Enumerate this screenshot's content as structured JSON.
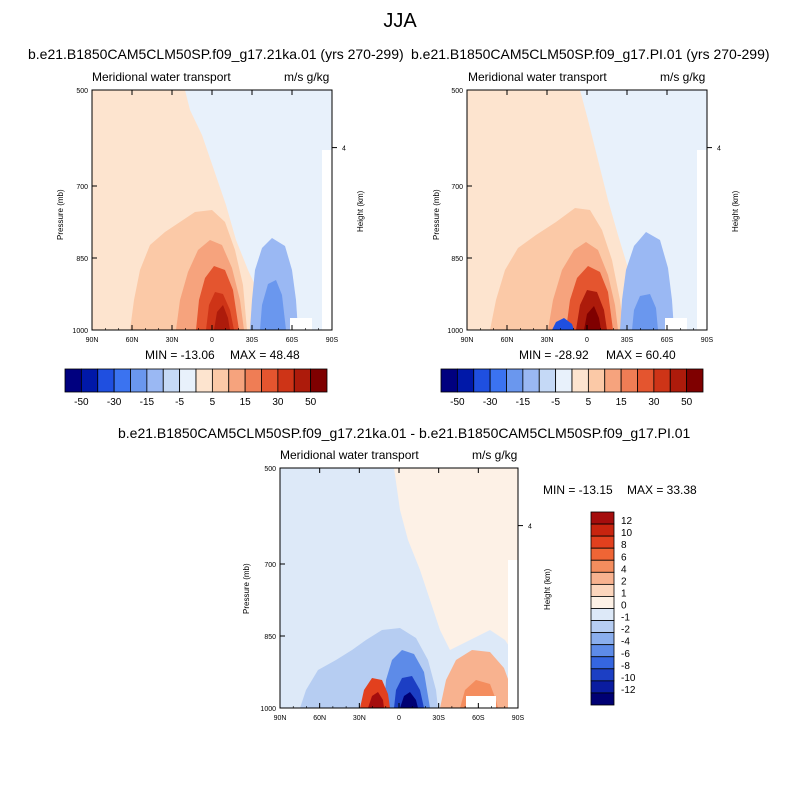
{
  "page_title": "JJA",
  "colors": {
    "axis": "#000000",
    "missing": "#ffffff"
  },
  "chart_data": [
    {
      "id": "ka",
      "type": "heatmap",
      "title": "b.e21.B1850CAM5CLM50SP.f09_g17.21ka.01 (yrs 270-299)",
      "left_label": "Meridional water transport",
      "right_label": "m/s g/kg",
      "ylabel": "Pressure (mb)",
      "ylabel_right": "Height (km)",
      "x_ticks": [
        "90N",
        "60N",
        "30N",
        "0",
        "30S",
        "60S",
        "90S"
      ],
      "y_ticks": [
        "500",
        "700",
        "850",
        "1000"
      ],
      "y_right_ticks": [
        "4"
      ],
      "min_label": "MIN = -13.06",
      "max_label": "MAX =  48.48",
      "levels": [
        -50,
        -40,
        -30,
        -20,
        -15,
        -10,
        -5,
        -1,
        1,
        5,
        10,
        15,
        20,
        30,
        40,
        50
      ],
      "colorbar_labels": [
        "-50",
        "-30",
        "-15",
        "-5",
        "5",
        "15",
        "30",
        "50"
      ],
      "colorbar_colors": [
        "#00007f",
        "#0018a8",
        "#1f4fe0",
        "#3b73f0",
        "#6a97ee",
        "#9ab8f3",
        "#c5d9f6",
        "#e8f1fb",
        "#fde4cf",
        "#fbc9a7",
        "#f6a37d",
        "#ef7d55",
        "#e4552f",
        "#ce3417",
        "#ad1b0b",
        "#7f0000"
      ]
    },
    {
      "id": "pi",
      "type": "heatmap",
      "title": "b.e21.B1850CAM5CLM50SP.f09_g17.PI.01 (yrs 270-299)",
      "left_label": "Meridional water transport",
      "right_label": "m/s g/kg",
      "ylabel": "Pressure (mb)",
      "ylabel_right": "Height (km)",
      "x_ticks": [
        "90N",
        "60N",
        "30N",
        "0",
        "30S",
        "60S",
        "90S"
      ],
      "y_ticks": [
        "500",
        "700",
        "850",
        "1000"
      ],
      "y_right_ticks": [
        "4"
      ],
      "min_label": "MIN = -28.92",
      "max_label": "MAX =  60.40",
      "levels": [
        -50,
        -40,
        -30,
        -20,
        -15,
        -10,
        -5,
        -1,
        1,
        5,
        10,
        15,
        20,
        30,
        40,
        50
      ],
      "colorbar_labels": [
        "-50",
        "-30",
        "-15",
        "-5",
        "5",
        "15",
        "30",
        "50"
      ],
      "colorbar_colors": [
        "#00007f",
        "#0018a8",
        "#1f4fe0",
        "#3b73f0",
        "#6a97ee",
        "#9ab8f3",
        "#c5d9f6",
        "#e8f1fb",
        "#fde4cf",
        "#fbc9a7",
        "#f6a37d",
        "#ef7d55",
        "#e4552f",
        "#ce3417",
        "#ad1b0b",
        "#7f0000"
      ]
    },
    {
      "id": "diff",
      "type": "heatmap",
      "title": "b.e21.B1850CAM5CLM50SP.f09_g17.21ka.01 - b.e21.B1850CAM5CLM50SP.f09_g17.PI.01",
      "left_label": "Meridional water transport",
      "right_label": "m/s g/kg",
      "ylabel": "Pressure (mb)",
      "ylabel_right": "Height (km)",
      "x_ticks": [
        "90N",
        "60N",
        "30N",
        "0",
        "30S",
        "60S",
        "90S"
      ],
      "y_ticks": [
        "500",
        "700",
        "850",
        "1000"
      ],
      "y_right_ticks": [
        "4"
      ],
      "min_label": "MIN = -13.15",
      "max_label": "MAX =  33.38",
      "levels": [
        -12,
        -10,
        -8,
        -6,
        -4,
        -2,
        -1,
        0,
        1,
        2,
        4,
        6,
        8,
        10,
        12
      ],
      "colorbar_labels": [
        "12",
        "10",
        "8",
        "6",
        "4",
        "2",
        "1",
        "0",
        "-1",
        "-2",
        "-4",
        "-6",
        "-8",
        "-10",
        "-12"
      ],
      "colorbar_colors": [
        "#a50d0d",
        "#c8240f",
        "#e2401e",
        "#ef6535",
        "#f48d5e",
        "#f8b28f",
        "#fcd6bd",
        "#fdf1e6",
        "#dde9f8",
        "#b6cdf2",
        "#8aaeed",
        "#5d8be8",
        "#3566e0",
        "#1c3fc4",
        "#0a1ca0",
        "#000073"
      ]
    }
  ]
}
